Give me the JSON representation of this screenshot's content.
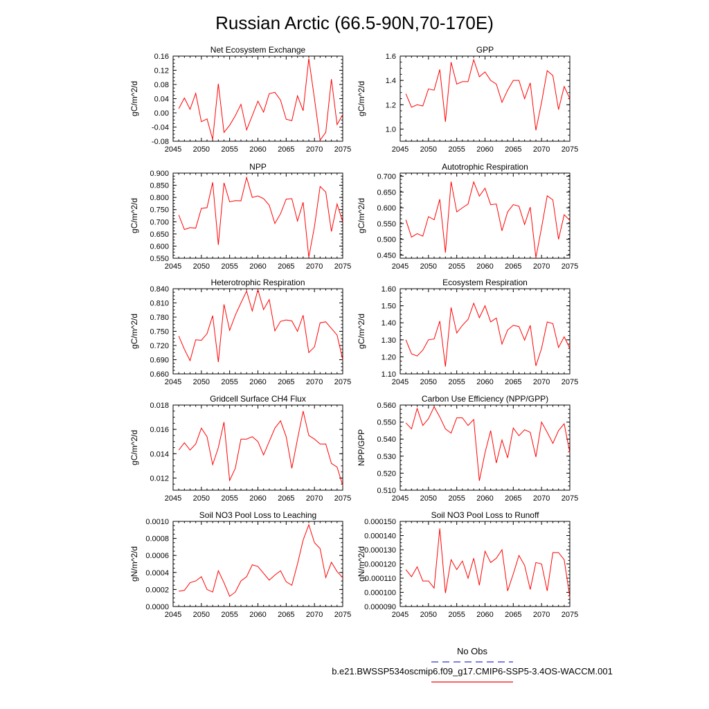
{
  "title": "Russian Arctic (66.5-90N,70-170E)",
  "legend": {
    "obs_label": "No Obs",
    "obs_color": "#3333cc",
    "model_label": "b.e21.BWSSP534oscmip6.f09_g17.CMIP6-SSP5-3.4OS-WACCM.001",
    "model_color": "#ff0000"
  },
  "chart_data": [
    {
      "type": "line",
      "title": "Net Ecosystem Exchange",
      "ylabel": "gC/m^2/d",
      "xlim": [
        2045,
        2075
      ],
      "ylim": [
        -0.08,
        0.16
      ],
      "xticks": [
        "2045",
        "2050",
        "2055",
        "2060",
        "2065",
        "2070",
        "2075"
      ],
      "yticks": [
        "-0.08",
        "-0.04",
        "0.00",
        "0.04",
        "0.08",
        "0.12",
        "0.16"
      ],
      "x": [
        2046,
        2047,
        2048,
        2049,
        2050,
        2051,
        2052,
        2053,
        2054,
        2055,
        2056,
        2057,
        2058,
        2059,
        2060,
        2061,
        2062,
        2063,
        2064,
        2065,
        2066,
        2067,
        2068,
        2069,
        2070,
        2071,
        2072,
        2073,
        2074,
        2075
      ],
      "values": [
        0.012,
        0.042,
        0.01,
        0.055,
        -0.025,
        -0.017,
        -0.075,
        0.082,
        -0.055,
        -0.035,
        -0.008,
        0.024,
        -0.048,
        -0.008,
        0.033,
        0.002,
        0.054,
        0.058,
        0.036,
        -0.018,
        -0.022,
        0.048,
        0.006,
        0.153,
        0.04,
        -0.077,
        -0.055,
        0.095,
        -0.033,
        -0.005
      ]
    },
    {
      "type": "line",
      "title": "GPP",
      "ylabel": "gC/m^2/d",
      "xlim": [
        2045,
        2075
      ],
      "ylim": [
        0.9,
        1.6
      ],
      "xticks": [
        "2045",
        "2050",
        "2055",
        "2060",
        "2065",
        "2070",
        "2075"
      ],
      "yticks": [
        "1.0",
        "1.2",
        "1.4",
        "1.6"
      ],
      "x": [
        2046,
        2047,
        2048,
        2049,
        2050,
        2051,
        2052,
        2053,
        2054,
        2055,
        2056,
        2057,
        2058,
        2059,
        2060,
        2061,
        2062,
        2063,
        2064,
        2065,
        2066,
        2067,
        2068,
        2069,
        2070,
        2071,
        2072,
        2073,
        2074,
        2075
      ],
      "values": [
        1.29,
        1.18,
        1.2,
        1.19,
        1.33,
        1.32,
        1.49,
        1.06,
        1.55,
        1.37,
        1.39,
        1.39,
        1.57,
        1.43,
        1.47,
        1.4,
        1.37,
        1.22,
        1.32,
        1.4,
        1.4,
        1.25,
        1.38,
        0.99,
        1.22,
        1.48,
        1.44,
        1.16,
        1.35,
        1.25
      ]
    },
    {
      "type": "line",
      "title": "NPP",
      "ylabel": "gC/m^2/d",
      "xlim": [
        2045,
        2075
      ],
      "ylim": [
        0.55,
        0.9
      ],
      "xticks": [
        "2045",
        "2050",
        "2055",
        "2060",
        "2065",
        "2070",
        "2075"
      ],
      "yticks": [
        "0.550",
        "0.600",
        "0.650",
        "0.700",
        "0.750",
        "0.800",
        "0.850",
        "0.900"
      ],
      "x": [
        2046,
        2047,
        2048,
        2049,
        2050,
        2051,
        2052,
        2053,
        2054,
        2055,
        2056,
        2057,
        2058,
        2059,
        2060,
        2061,
        2062,
        2063,
        2064,
        2065,
        2066,
        2067,
        2068,
        2069,
        2070,
        2071,
        2072,
        2073,
        2074,
        2075
      ],
      "values": [
        0.728,
        0.668,
        0.676,
        0.674,
        0.755,
        0.758,
        0.862,
        0.605,
        0.86,
        0.782,
        0.787,
        0.786,
        0.882,
        0.8,
        0.806,
        0.795,
        0.768,
        0.693,
        0.733,
        0.793,
        0.795,
        0.703,
        0.78,
        0.554,
        0.68,
        0.845,
        0.822,
        0.66,
        0.773,
        0.7
      ]
    },
    {
      "type": "line",
      "title": "Autotrophic Respiration",
      "ylabel": "gC/m^2/d",
      "xlim": [
        2045,
        2075
      ],
      "ylim": [
        0.44,
        0.71
      ],
      "xticks": [
        "2045",
        "2050",
        "2055",
        "2060",
        "2065",
        "2070",
        "2075"
      ],
      "yticks": [
        "0.450",
        "0.500",
        "0.550",
        "0.600",
        "0.650",
        "0.700"
      ],
      "x": [
        2046,
        2047,
        2048,
        2049,
        2050,
        2051,
        2052,
        2053,
        2054,
        2055,
        2056,
        2057,
        2058,
        2059,
        2060,
        2061,
        2062,
        2063,
        2064,
        2065,
        2066,
        2067,
        2068,
        2069,
        2070,
        2071,
        2072,
        2073,
        2074,
        2075
      ],
      "values": [
        0.562,
        0.507,
        0.518,
        0.51,
        0.572,
        0.562,
        0.627,
        0.458,
        0.683,
        0.587,
        0.6,
        0.612,
        0.682,
        0.637,
        0.662,
        0.61,
        0.612,
        0.527,
        0.587,
        0.61,
        0.605,
        0.547,
        0.602,
        0.442,
        0.537,
        0.638,
        0.625,
        0.5,
        0.578,
        0.56
      ]
    },
    {
      "type": "line",
      "title": "Heterotrophic Respiration",
      "ylabel": "gC/m^2/d",
      "xlim": [
        2045,
        2075
      ],
      "ylim": [
        0.66,
        0.84
      ],
      "xticks": [
        "2045",
        "2050",
        "2055",
        "2060",
        "2065",
        "2070",
        "2075"
      ],
      "yticks": [
        "0.660",
        "0.690",
        "0.720",
        "0.750",
        "0.780",
        "0.810",
        "0.840"
      ],
      "x": [
        2046,
        2047,
        2048,
        2049,
        2050,
        2051,
        2052,
        2053,
        2054,
        2055,
        2056,
        2057,
        2058,
        2059,
        2060,
        2061,
        2062,
        2063,
        2064,
        2065,
        2066,
        2067,
        2068,
        2069,
        2070,
        2071,
        2072,
        2073,
        2074,
        2075
      ],
      "values": [
        0.74,
        0.712,
        0.688,
        0.732,
        0.731,
        0.745,
        0.783,
        0.685,
        0.807,
        0.752,
        0.784,
        0.81,
        0.835,
        0.793,
        0.838,
        0.796,
        0.817,
        0.751,
        0.771,
        0.774,
        0.772,
        0.75,
        0.784,
        0.705,
        0.717,
        0.768,
        0.77,
        0.756,
        0.742,
        0.69
      ]
    },
    {
      "type": "line",
      "title": "Ecosystem Respiration",
      "ylabel": "gC/m^2/d",
      "xlim": [
        2045,
        2075
      ],
      "ylim": [
        1.1,
        1.6
      ],
      "xticks": [
        "2045",
        "2050",
        "2055",
        "2060",
        "2065",
        "2070",
        "2075"
      ],
      "yticks": [
        "1.10",
        "1.20",
        "1.30",
        "1.40",
        "1.50",
        "1.60"
      ],
      "x": [
        2046,
        2047,
        2048,
        2049,
        2050,
        2051,
        2052,
        2053,
        2054,
        2055,
        2056,
        2057,
        2058,
        2059,
        2060,
        2061,
        2062,
        2063,
        2064,
        2065,
        2066,
        2067,
        2068,
        2069,
        2070,
        2071,
        2072,
        2073,
        2074,
        2075
      ],
      "values": [
        1.3,
        1.218,
        1.205,
        1.24,
        1.3,
        1.305,
        1.41,
        1.143,
        1.49,
        1.34,
        1.385,
        1.42,
        1.515,
        1.43,
        1.5,
        1.405,
        1.428,
        1.275,
        1.358,
        1.385,
        1.378,
        1.298,
        1.385,
        1.147,
        1.25,
        1.405,
        1.395,
        1.255,
        1.318,
        1.25
      ]
    },
    {
      "type": "line",
      "title": "Gridcell Surface CH4 Flux",
      "ylabel": "gC/m^2/d",
      "xlim": [
        2045,
        2075
      ],
      "ylim": [
        0.011,
        0.018
      ],
      "xticks": [
        "2045",
        "2050",
        "2055",
        "2060",
        "2065",
        "2070",
        "2075"
      ],
      "yticks": [
        "0.012",
        "0.014",
        "0.016",
        "0.018"
      ],
      "x": [
        2046,
        2047,
        2048,
        2049,
        2050,
        2051,
        2052,
        2053,
        2054,
        2055,
        2056,
        2057,
        2058,
        2059,
        2060,
        2061,
        2062,
        2063,
        2064,
        2065,
        2066,
        2067,
        2068,
        2069,
        2070,
        2071,
        2072,
        2073,
        2074,
        2075
      ],
      "values": [
        0.0143,
        0.0149,
        0.0143,
        0.0148,
        0.0161,
        0.0154,
        0.0131,
        0.0145,
        0.0166,
        0.0118,
        0.0128,
        0.0152,
        0.0152,
        0.0154,
        0.015,
        0.0139,
        0.015,
        0.0161,
        0.0167,
        0.0154,
        0.0128,
        0.0152,
        0.0175,
        0.0155,
        0.0152,
        0.0148,
        0.0148,
        0.0132,
        0.0129,
        0.0114
      ]
    },
    {
      "type": "line",
      "title": "Carbon Use Efficiency (NPP/GPP)",
      "ylabel": "NPP/GPP",
      "xlim": [
        2045,
        2075
      ],
      "ylim": [
        0.51,
        0.56
      ],
      "xticks": [
        "2045",
        "2050",
        "2055",
        "2060",
        "2065",
        "2070",
        "2075"
      ],
      "yticks": [
        "0.510",
        "0.520",
        "0.530",
        "0.540",
        "0.550",
        "0.560"
      ],
      "x": [
        2046,
        2047,
        2048,
        2049,
        2050,
        2051,
        2052,
        2053,
        2054,
        2055,
        2056,
        2057,
        2058,
        2059,
        2060,
        2061,
        2062,
        2063,
        2064,
        2065,
        2066,
        2067,
        2068,
        2069,
        2070,
        2071,
        2072,
        2073,
        2074,
        2075
      ],
      "values": [
        0.5495,
        0.546,
        0.558,
        0.548,
        0.552,
        0.559,
        0.553,
        0.546,
        0.5435,
        0.5525,
        0.5525,
        0.548,
        0.5515,
        0.5155,
        0.532,
        0.545,
        0.526,
        0.5395,
        0.529,
        0.5465,
        0.542,
        0.5455,
        0.544,
        0.5295,
        0.55,
        0.544,
        0.5375,
        0.545,
        0.549,
        0.532
      ]
    },
    {
      "type": "line",
      "title": "Soil NO3 Pool Loss to Leaching",
      "ylabel": "gN/m^2/d",
      "xlim": [
        2045,
        2075
      ],
      "ylim": [
        0,
        0.001
      ],
      "xticks": [
        "2045",
        "2050",
        "2055",
        "2060",
        "2065",
        "2070",
        "2075"
      ],
      "yticks": [
        "0.0000",
        "0.0002",
        "0.0004",
        "0.0006",
        "0.0008",
        "0.0010"
      ],
      "x": [
        2046,
        2047,
        2048,
        2049,
        2050,
        2051,
        2052,
        2053,
        2054,
        2055,
        2056,
        2057,
        2058,
        2059,
        2060,
        2061,
        2062,
        2063,
        2064,
        2065,
        2066,
        2067,
        2068,
        2069,
        2070,
        2071,
        2072,
        2073,
        2074,
        2075
      ],
      "values": [
        0.00018,
        0.00019,
        0.00028,
        0.0003,
        0.00035,
        0.0002,
        0.00017,
        0.00042,
        0.00028,
        0.00012,
        0.00017,
        0.0003,
        0.00035,
        0.00049,
        0.00047,
        0.00039,
        0.00031,
        0.00037,
        0.00042,
        0.00029,
        0.00025,
        0.0005,
        0.00078,
        0.00096,
        0.00075,
        0.00068,
        0.00034,
        0.00052,
        0.00041,
        0.00034
      ]
    },
    {
      "type": "line",
      "title": "Soil NO3 Pool Loss to Runoff",
      "ylabel": "gN/m^2/d",
      "xlim": [
        2045,
        2075
      ],
      "ylim": [
        9e-05,
        0.00015
      ],
      "xticks": [
        "2045",
        "2050",
        "2055",
        "2060",
        "2065",
        "2070",
        "2075"
      ],
      "yticks": [
        "0.000090",
        "0.000100",
        "0.000110",
        "0.000120",
        "0.000130",
        "0.000140",
        "0.000150"
      ],
      "x": [
        2046,
        2047,
        2048,
        2049,
        2050,
        2051,
        2052,
        2053,
        2054,
        2055,
        2056,
        2057,
        2058,
        2059,
        2060,
        2061,
        2062,
        2063,
        2064,
        2065,
        2066,
        2067,
        2068,
        2069,
        2070,
        2071,
        2072,
        2073,
        2074,
        2075
      ],
      "values": [
        0.000116,
        0.000111,
        0.000118,
        0.000108,
        0.000108,
        0.000103,
        0.000145,
        9.95e-05,
        0.000123,
        0.000116,
        0.000122,
        0.00011,
        0.000124,
        0.000105,
        0.000129,
        0.000121,
        0.000124,
        0.00013,
        0.000101,
        0.000113,
        0.000126,
        0.000119,
        0.000102,
        0.000121,
        0.00012,
        0.000101,
        0.000128,
        0.000128,
        0.000123,
        9.65e-05
      ]
    }
  ]
}
